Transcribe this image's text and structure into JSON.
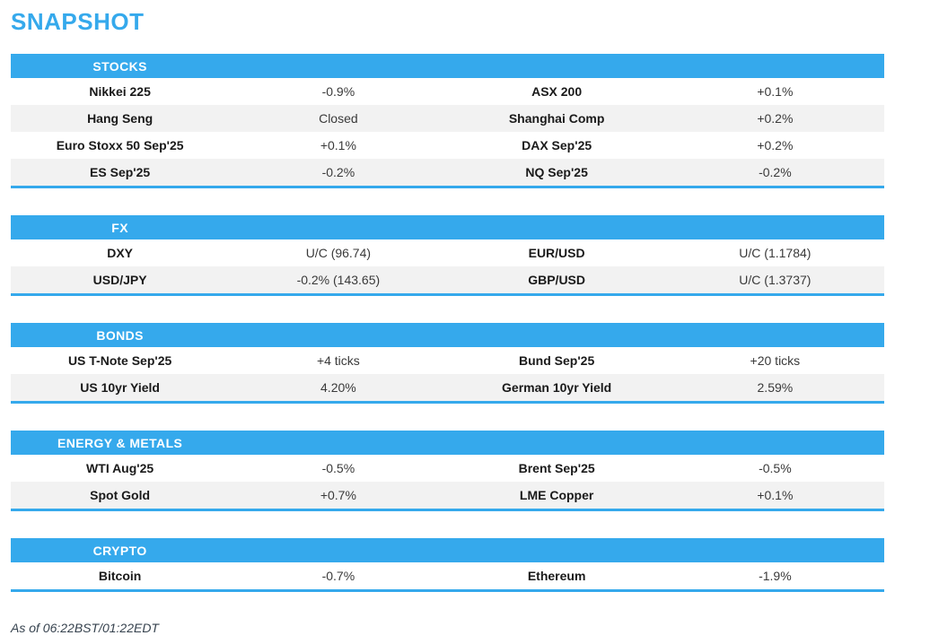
{
  "page_title": "SNAPSHOT",
  "colors": {
    "accent_blue": "#35A9EC",
    "row_alt_gray": "#F2F2F2",
    "header_text": "#FFFFFF",
    "label_text": "#1A1A1A",
    "value_text": "#3A3A3A",
    "footer_text": "#36424E"
  },
  "sections": [
    {
      "title": "STOCKS",
      "rows": [
        {
          "l_label": "Nikkei 225",
          "l_value": "-0.9%",
          "r_label": "ASX 200",
          "r_value": "+0.1%"
        },
        {
          "l_label": "Hang Seng",
          "l_value": "Closed",
          "r_label": "Shanghai Comp",
          "r_value": "+0.2%"
        },
        {
          "l_label": "Euro Stoxx 50 Sep'25",
          "l_value": "+0.1%",
          "r_label": "DAX Sep'25",
          "r_value": "+0.2%"
        },
        {
          "l_label": "ES Sep'25",
          "l_value": "-0.2%",
          "r_label": "NQ Sep'25",
          "r_value": "-0.2%"
        }
      ]
    },
    {
      "title": "FX",
      "rows": [
        {
          "l_label": "DXY",
          "l_value": "U/C (96.74)",
          "r_label": "EUR/USD",
          "r_value": "U/C (1.1784)"
        },
        {
          "l_label": "USD/JPY",
          "l_value": "-0.2% (143.65)",
          "r_label": "GBP/USD",
          "r_value": "U/C (1.3737)"
        }
      ]
    },
    {
      "title": "BONDS",
      "rows": [
        {
          "l_label": "US T-Note Sep'25",
          "l_value": "+4 ticks",
          "r_label": "Bund Sep'25",
          "r_value": "+20 ticks"
        },
        {
          "l_label": "US 10yr Yield",
          "l_value": "4.20%",
          "r_label": "German 10yr Yield",
          "r_value": "2.59%"
        }
      ]
    },
    {
      "title": "ENERGY & METALS",
      "rows": [
        {
          "l_label": "WTI Aug'25",
          "l_value": "-0.5%",
          "r_label": "Brent Sep'25",
          "r_value": "-0.5%"
        },
        {
          "l_label": "Spot Gold",
          "l_value": "+0.7%",
          "r_label": "LME Copper",
          "r_value": "+0.1%"
        }
      ]
    },
    {
      "title": "CRYPTO",
      "rows": [
        {
          "l_label": "Bitcoin",
          "l_value": "-0.7%",
          "r_label": "Ethereum",
          "r_value": "-1.9%"
        }
      ]
    }
  ],
  "footer": {
    "as_of": "As of 06:22BST/01:22EDT"
  }
}
